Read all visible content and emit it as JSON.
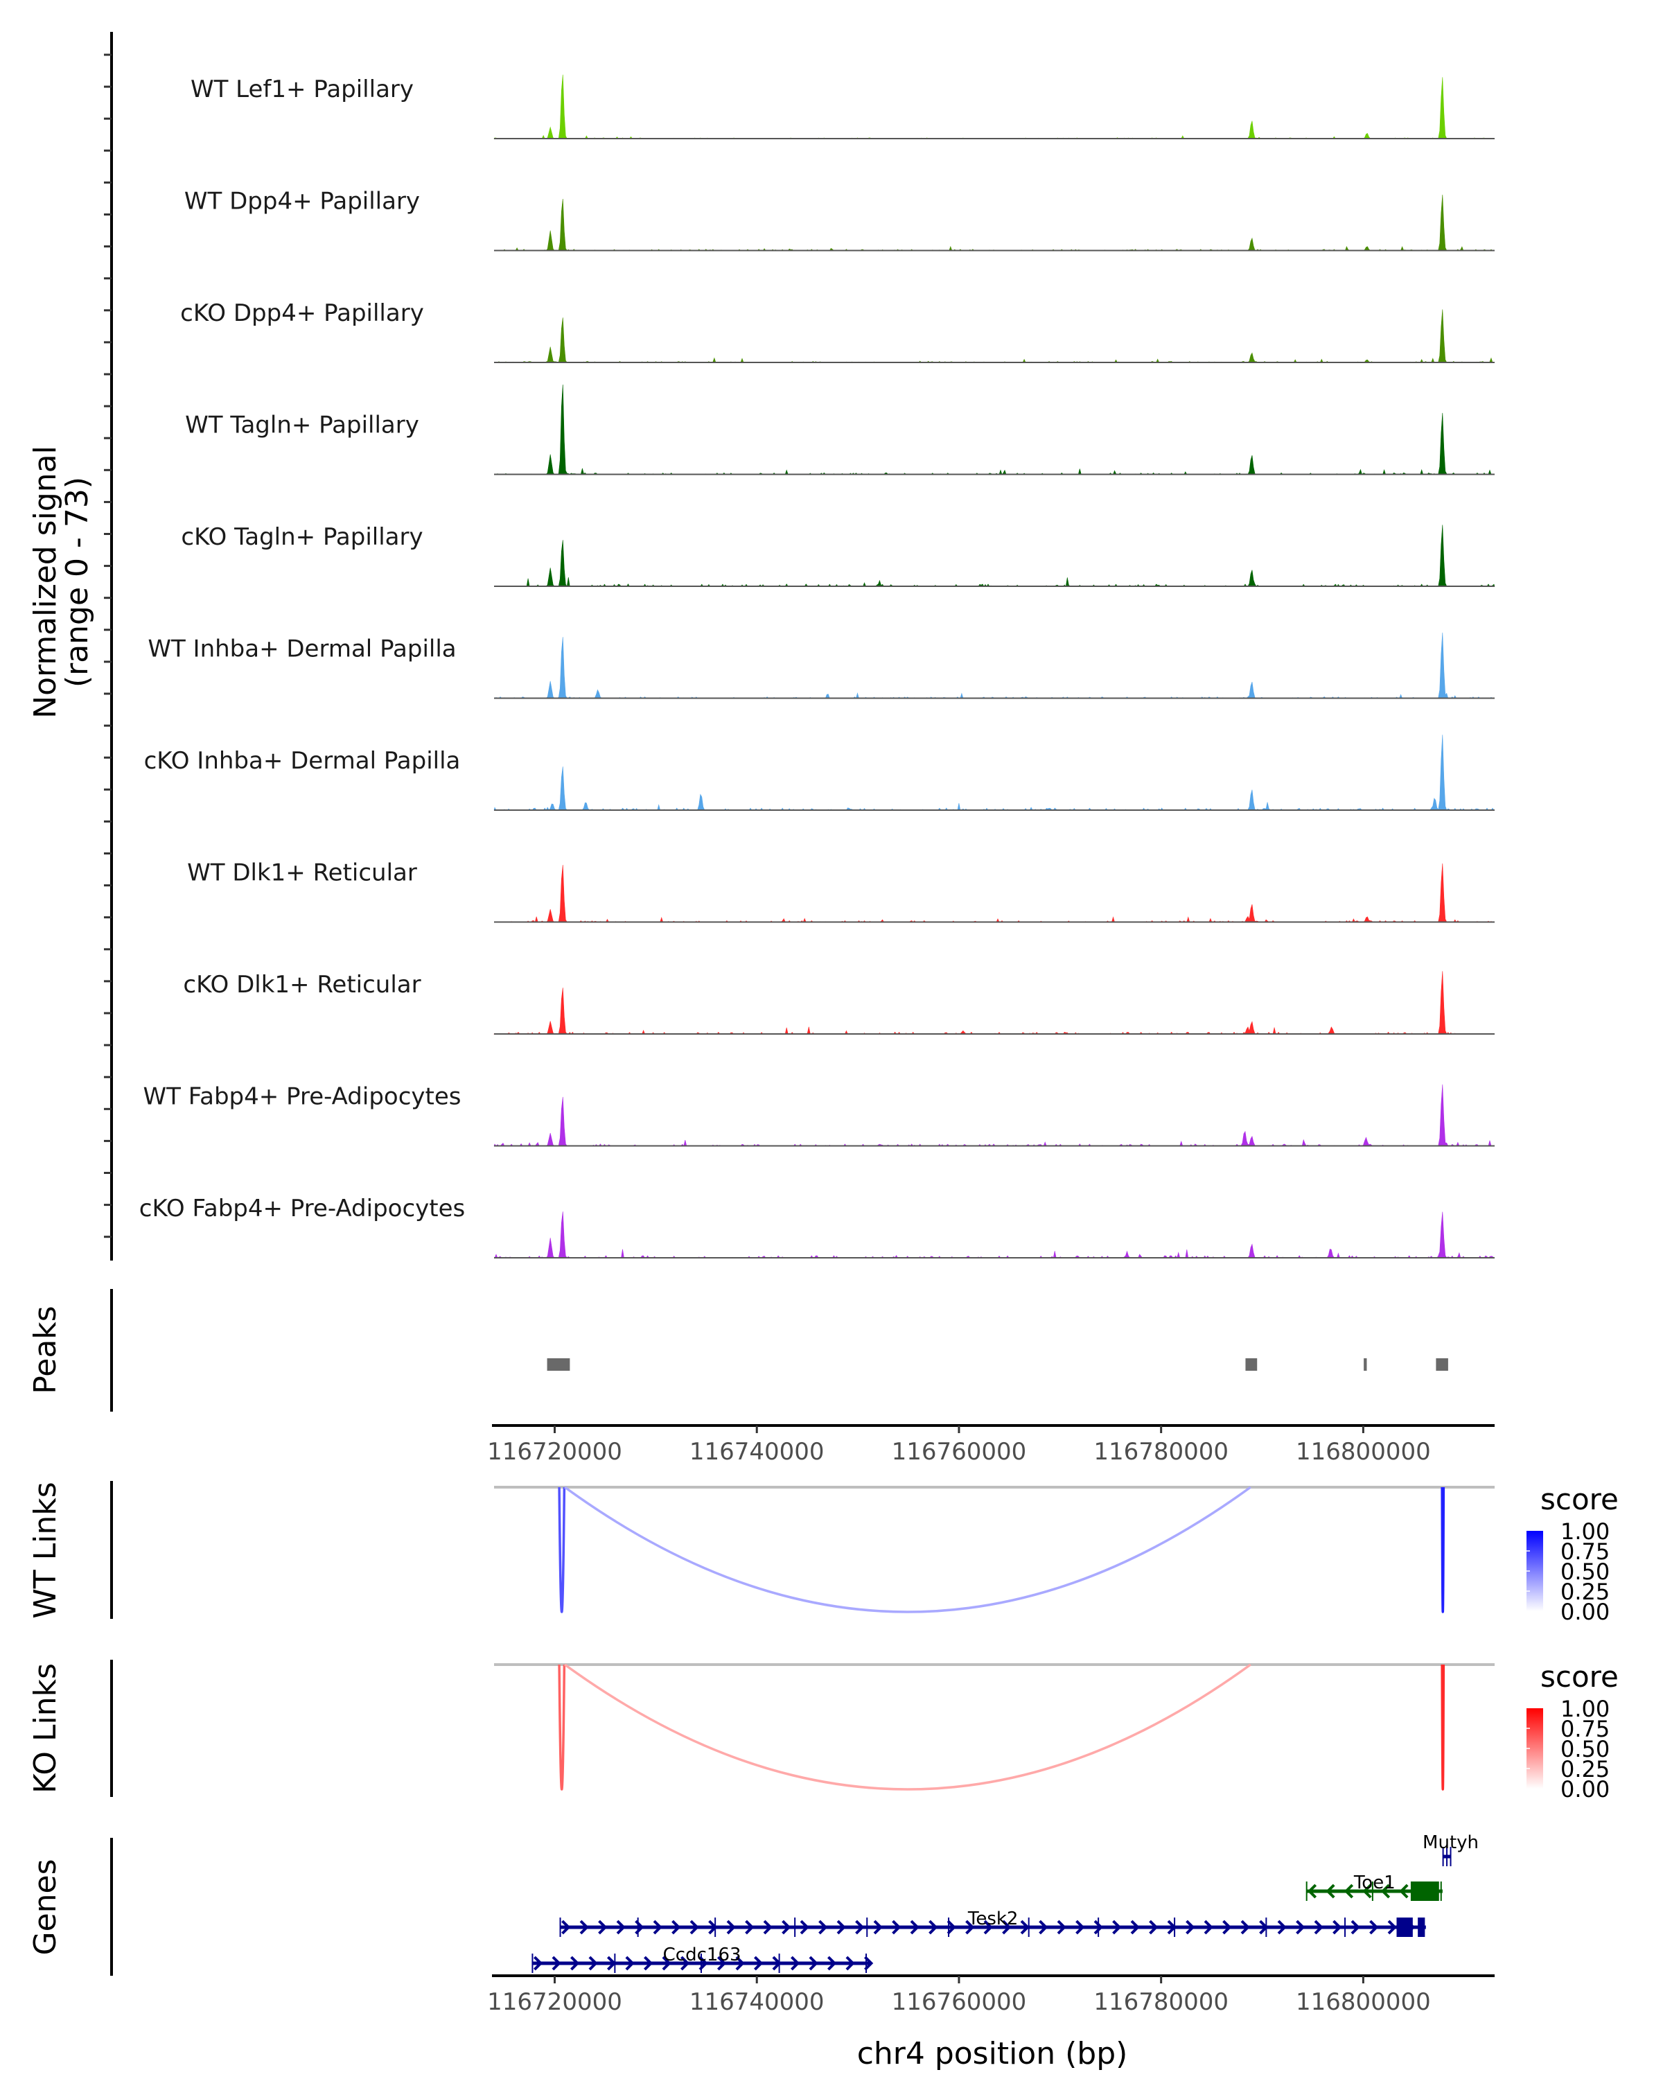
{
  "chart_data": {
    "type": "area",
    "title": "",
    "region": {
      "chromosome": "chr4",
      "xlim": [
        116714000,
        116813000
      ]
    },
    "coverage": {
      "ylabel_line1": "Normalized signal",
      "ylabel_line2": "(range 0 - 73)",
      "ylim": [
        0,
        73
      ],
      "tracks": [
        {
          "name": "WT Lef1+ Papillary",
          "color": "#6cd000",
          "peaks": [
            [
              116719500,
              8
            ],
            [
              116720700,
              47
            ],
            [
              116788900,
              13
            ],
            [
              116800300,
              4
            ],
            [
              116807750,
              44
            ]
          ],
          "noise": 0.6
        },
        {
          "name": "WT Dpp4+ Papillary",
          "color": "#4a8f00",
          "peaks": [
            [
              116719500,
              14
            ],
            [
              116720700,
              38
            ],
            [
              116788900,
              9
            ],
            [
              116800300,
              3
            ],
            [
              116807750,
              40
            ]
          ],
          "noise": 0.9
        },
        {
          "name": "cKO Dpp4+ Papillary",
          "color": "#4a8f00",
          "peaks": [
            [
              116719500,
              11
            ],
            [
              116720700,
              33
            ],
            [
              116788900,
              7
            ],
            [
              116800300,
              2
            ],
            [
              116807750,
              38
            ]
          ],
          "noise": 0.8
        },
        {
          "name": "WT Tagln+ Papillary",
          "color": "#006400",
          "peaks": [
            [
              116719500,
              14
            ],
            [
              116720700,
              66
            ],
            [
              116788900,
              14
            ],
            [
              116807750,
              44
            ]
          ],
          "noise": 1.1
        },
        {
          "name": "cKO Tagln+ Papillary",
          "color": "#006400",
          "peaks": [
            [
              116719500,
              13
            ],
            [
              116720700,
              34
            ],
            [
              116788900,
              12
            ],
            [
              116807750,
              44
            ]
          ],
          "noise": 1.6
        },
        {
          "name": "WT Inhba+ Dermal Papilla",
          "color": "#56a6ea",
          "peaks": [
            [
              116719500,
              12
            ],
            [
              116720700,
              45
            ],
            [
              116724200,
              6
            ],
            [
              116788900,
              12
            ],
            [
              116807750,
              47
            ]
          ],
          "noise": 1.0
        },
        {
          "name": "cKO Inhba+ Dermal Papilla",
          "color": "#56a6ea",
          "peaks": [
            [
              116719700,
              5
            ],
            [
              116720700,
              32
            ],
            [
              116723000,
              6
            ],
            [
              116734400,
              12
            ],
            [
              116788900,
              15
            ],
            [
              116807000,
              9
            ],
            [
              116807750,
              54
            ]
          ],
          "noise": 1.5
        },
        {
          "name": "WT Dlk1+ Reticular",
          "color": "#ff2a2a",
          "peaks": [
            [
              116719500,
              9
            ],
            [
              116720700,
              42
            ],
            [
              116788500,
              4
            ],
            [
              116788900,
              13
            ],
            [
              116800300,
              4
            ],
            [
              116807750,
              42
            ]
          ],
          "noise": 1.0
        },
        {
          "name": "cKO Dlk1+ Reticular",
          "color": "#ff2a2a",
          "peaks": [
            [
              116719500,
              9
            ],
            [
              116720700,
              34
            ],
            [
              116788500,
              5
            ],
            [
              116788900,
              9
            ],
            [
              116796800,
              5
            ],
            [
              116807750,
              45
            ]
          ],
          "noise": 1.3
        },
        {
          "name": "WT Fabp4+ Pre-Adipocytes",
          "color": "#b030e8",
          "peaks": [
            [
              116719500,
              9
            ],
            [
              116720700,
              36
            ],
            [
              116788200,
              11
            ],
            [
              116788900,
              7
            ],
            [
              116800200,
              6
            ],
            [
              116807750,
              44
            ]
          ],
          "noise": 1.3
        },
        {
          "name": "cKO Fabp4+ Pre-Adipocytes",
          "color": "#b030e8",
          "peaks": [
            [
              116719500,
              14
            ],
            [
              116720700,
              34
            ],
            [
              116788900,
              10
            ],
            [
              116796700,
              7
            ],
            [
              116807750,
              33
            ]
          ],
          "noise": 1.6
        }
      ]
    },
    "peaks_track": {
      "label": "Peaks",
      "color": "#696969",
      "regions": [
        [
          116719250,
          116721500
        ],
        [
          116788350,
          116789500
        ],
        [
          116800050,
          116800350
        ],
        [
          116807200,
          116808400
        ]
      ]
    },
    "x_axis": {
      "ticks": [
        116720000,
        116740000,
        116760000,
        116780000,
        116800000
      ],
      "tick_labels": [
        "116720000",
        "116740000",
        "116760000",
        "116780000",
        "116800000"
      ],
      "title": "chr4 position (bp)"
    },
    "links": [
      {
        "label": "WT Links",
        "legend_title": "score",
        "scale_low": "#ffffff",
        "scale_high": "#0000ff",
        "legend_ticks": [
          "1.00",
          "0.75",
          "0.50",
          "0.25",
          "0.00"
        ],
        "arcs": [
          {
            "start": 116720450,
            "end": 116720950,
            "score": 0.62
          },
          {
            "start": 116721000,
            "end": 116788850,
            "score": 0.22
          },
          {
            "start": 116807800,
            "end": 116807950,
            "score": 0.85
          }
        ]
      },
      {
        "label": "KO Links",
        "legend_title": "score",
        "scale_low": "#ffffff",
        "scale_high": "#ff0000",
        "legend_ticks": [
          "1.00",
          "0.75",
          "0.50",
          "0.25",
          "0.00"
        ],
        "arcs": [
          {
            "start": 116720450,
            "end": 116720950,
            "score": 0.55
          },
          {
            "start": 116721000,
            "end": 116788850,
            "score": 0.22
          },
          {
            "start": 116807800,
            "end": 116807950,
            "score": 0.8
          }
        ]
      }
    ],
    "genes_track": {
      "label": "Genes",
      "genes": [
        {
          "name": "Mutyh",
          "start": 116807900,
          "end": 116808650,
          "strand": "+",
          "row": 0,
          "color": "#00008b",
          "exons": []
        },
        {
          "name": "Toe1",
          "start": 116794400,
          "end": 116807850,
          "strand": "-",
          "row": 1,
          "color": "#006400",
          "exons": [
            [
              116804700,
              116807500
            ]
          ]
        },
        {
          "name": "Tesk2",
          "start": 116720550,
          "end": 116806200,
          "strand": "+",
          "row": 2,
          "color": "#00008b",
          "exons": [
            [
              116803300,
              116804900
            ],
            [
              116805400,
              116806100
            ]
          ]
        },
        {
          "name": "Ccdc163",
          "start": 116717800,
          "end": 116751350,
          "strand": "+",
          "row": 3,
          "color": "#00008b",
          "exons": []
        }
      ]
    }
  }
}
